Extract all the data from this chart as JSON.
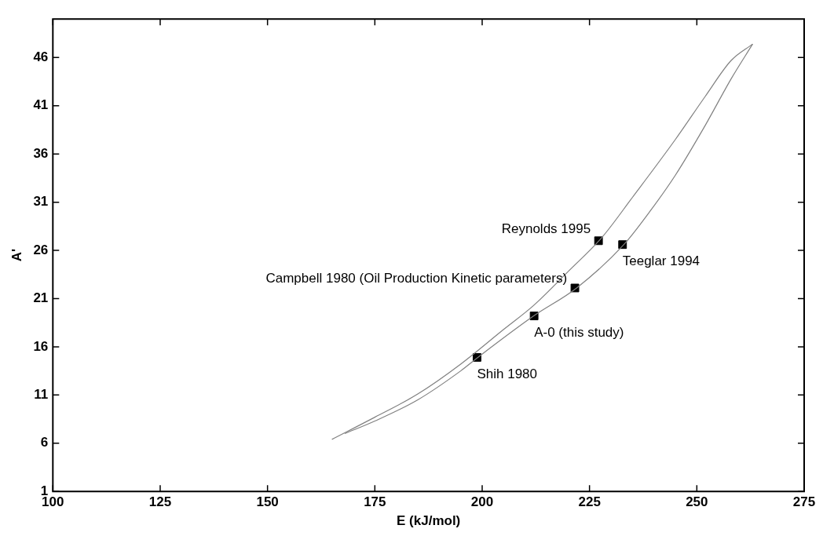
{
  "chart_data": {
    "type": "scatter",
    "xlabel": "E (kJ/mol)",
    "ylabel": "A'",
    "xlim": [
      100,
      275
    ],
    "xticks": [
      100,
      125,
      150,
      175,
      200,
      225,
      250,
      275
    ],
    "ylim": [
      1,
      50
    ],
    "yticks": [
      1,
      6,
      11,
      16,
      21,
      26,
      31,
      36,
      41,
      46
    ],
    "grid": false,
    "legend": false,
    "series": [
      {
        "type": "line",
        "color": "#808080",
        "marker": "none",
        "x": [
          165,
          175,
          185,
          195,
          205,
          212,
          220,
          228,
          235,
          245,
          252,
          258,
          263
        ],
        "values": [
          6.4,
          8.7,
          11.1,
          14.2,
          17.8,
          20.3,
          23.8,
          27.4,
          31.5,
          37.5,
          42.0,
          45.7,
          47.4
        ]
      },
      {
        "type": "line",
        "color": "#808080",
        "marker": "none",
        "x": [
          168,
          175,
          185,
          195,
          199,
          212,
          222,
          233,
          239,
          245,
          252,
          258,
          263
        ],
        "values": [
          7.0,
          8.3,
          10.5,
          13.5,
          14.9,
          19.2,
          22.1,
          26.6,
          30.0,
          33.8,
          39.0,
          43.8,
          47.4
        ]
      },
      {
        "color": "#000000",
        "marker": "square",
        "x": [
          198.8,
          212.1,
          221.6,
          227.1,
          232.7
        ],
        "values": [
          14.9,
          19.2,
          22.1,
          27.0,
          26.6
        ]
      }
    ],
    "annotations": [
      {
        "text": "Shih 1980",
        "x": 198.8,
        "y": 14.9
      },
      {
        "text": "A-0 (this study)",
        "x": 212.1,
        "y": 19.2
      },
      {
        "text": "Campbell 1980 (Oil Production Kinetic parameters)",
        "x": 221.6,
        "y": 22.1
      },
      {
        "text": "Reynolds 1995",
        "x": 227.1,
        "y": 27.0
      },
      {
        "text": "Teeglar 1994",
        "x": 232.7,
        "y": 26.6
      }
    ]
  }
}
